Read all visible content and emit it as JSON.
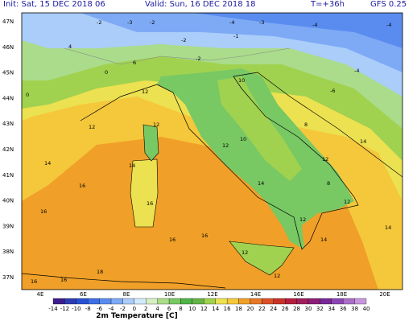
{
  "header": {
    "init": "Init: Sat, 15 DEC 2018  06",
    "valid": "Valid: Sun, 16 DEC 2018  18",
    "step": "T=+36h",
    "model": "GFS 0.25"
  },
  "axes": {
    "lat_labels": [
      "47N",
      "46N",
      "45N",
      "44N",
      "43N",
      "42N",
      "41N",
      "40N",
      "39N",
      "38N",
      "37N"
    ],
    "lon_labels": [
      "4E",
      "6E",
      "8E",
      "10E",
      "12E",
      "14E",
      "16E",
      "18E",
      "20E"
    ]
  },
  "legend": {
    "title": "2m Temperature [C]",
    "ticks": [
      -14,
      -12,
      -10,
      -8,
      -6,
      -4,
      -2,
      0,
      2,
      4,
      6,
      8,
      10,
      12,
      14,
      16,
      18,
      20,
      22,
      24,
      26,
      28,
      30,
      32,
      34,
      36,
      38,
      40
    ],
    "colors": [
      "#3c1e8c",
      "#2e3cb4",
      "#2850d2",
      "#3c6ee6",
      "#5a8cf0",
      "#7eaaf5",
      "#aacdfa",
      "#d2ebfa",
      "#d7f0c3",
      "#aadc8c",
      "#78c864",
      "#50b446",
      "#64b446",
      "#a0d250",
      "#ece150",
      "#f5c83c",
      "#f0a028",
      "#e67828",
      "#dc5028",
      "#c83228",
      "#b41e3c",
      "#a01e5a",
      "#8c1e78",
      "#782896",
      "#8c46b4",
      "#aa6ec8",
      "#c896dc"
    ]
  },
  "contour_labels": [
    -2,
    -3,
    -2,
    -4,
    -3,
    -4,
    -4,
    -2,
    0,
    -1,
    -6,
    -2,
    -4,
    0,
    4,
    6,
    12,
    12,
    10,
    8,
    12,
    12,
    14,
    12,
    16,
    14,
    14,
    12,
    16,
    16,
    16,
    18,
    16,
    14,
    14,
    12,
    10,
    8,
    12,
    14,
    12,
    16,
    16
  ]
}
